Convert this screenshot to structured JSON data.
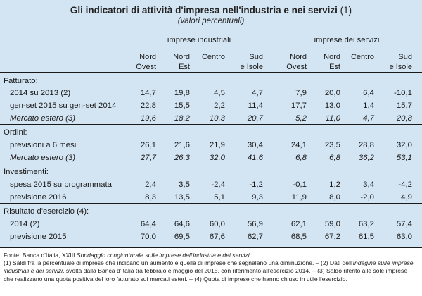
{
  "title": "Gli indicatori di attività d'impresa nell'industria e nei servizi",
  "title_note": "(1)",
  "subtitle": "(valori percentuali)",
  "groups": [
    "imprese industriali",
    "imprese dei servizi"
  ],
  "columns": [
    {
      "l1": "Nord",
      "l2": "Ovest"
    },
    {
      "l1": "Nord",
      "l2": "Est"
    },
    {
      "l1": "Centro",
      "l2": ""
    },
    {
      "l1": "Sud",
      "l2": "e Isole"
    },
    {
      "l1": "Nord",
      "l2": "Ovest"
    },
    {
      "l1": "Nord",
      "l2": "Est"
    },
    {
      "l1": "Centro",
      "l2": ""
    },
    {
      "l1": "Sud",
      "l2": "e Isole"
    }
  ],
  "rows": [
    {
      "kind": "section",
      "label": "Fatturato:"
    },
    {
      "kind": "data",
      "label": "2014 su 2013 (2)",
      "values": [
        "14,7",
        "19,8",
        "4,5",
        "4,7",
        "7,9",
        "20,0",
        "6,4",
        "-10,1"
      ]
    },
    {
      "kind": "data",
      "label": "gen-set 2015 su gen-set 2014",
      "values": [
        "22,8",
        "15,5",
        "2,2",
        "11,4",
        "17,7",
        "13,0",
        "1,4",
        "15,7"
      ]
    },
    {
      "kind": "italic",
      "label": "Mercato estero (3)",
      "values": [
        "19,6",
        "18,2",
        "10,3",
        "20,7",
        "5,2",
        "11,0",
        "4,7",
        "20,8"
      ]
    },
    {
      "kind": "section",
      "label": "Ordini:"
    },
    {
      "kind": "data",
      "label": "previsioni a 6 mesi",
      "values": [
        "26,1",
        "21,6",
        "21,9",
        "30,4",
        "24,1",
        "23,5",
        "28,8",
        "32,0"
      ]
    },
    {
      "kind": "italic",
      "label": "Mercato estero (3)",
      "values": [
        "27,7",
        "26,3",
        "32,0",
        "41,6",
        "6,8",
        "6,8",
        "36,2",
        "53,1"
      ]
    },
    {
      "kind": "section",
      "label": "Investimenti:"
    },
    {
      "kind": "data",
      "label": "spesa 2015 su programmata",
      "values": [
        "2,4",
        "3,5",
        "-2,4",
        "-1,2",
        "-0,1",
        "1,2",
        "3,4",
        "-4,2"
      ]
    },
    {
      "kind": "data",
      "label": "previsione 2016",
      "values": [
        "8,3",
        "13,5",
        "5,1",
        "9,3",
        "11,9",
        "8,0",
        "-2,0",
        "4,9"
      ]
    },
    {
      "kind": "section",
      "label": "Risultato d'esercizio (4):"
    },
    {
      "kind": "data",
      "label": "2014 (2)",
      "values": [
        "64,4",
        "64,6",
        "60,0",
        "56,9",
        "62,1",
        "59,0",
        "63,2",
        "57,4"
      ]
    },
    {
      "kind": "data",
      "label": "previsione 2015",
      "values": [
        "70,0",
        "69,5",
        "67,6",
        "62,7",
        "68,5",
        "67,2",
        "61,5",
        "63,0"
      ]
    }
  ],
  "footnotes": {
    "source_prefix": "Fonte: Banca d'Italia, XXIII ",
    "source_italic": "Sondaggio congiunturale sulle imprese dell'industria e dei servizi",
    "source_suffix": ".",
    "note_a": "(1) Saldi fra la percentuale di imprese che indicano un aumento e quella di imprese che segnalano una diminuzione. – (2) Dati dell'",
    "note_a_italic": "Indagine sulle imprese industriali e dei servizi",
    "note_b": ", svolta dalla Banca d'Italia tra febbraio e maggio del 2015, con riferimento all'esercizio 2014. – (3) Saldo riferito alle sole imprese che realizzano una quota positiva del loro fatturato sui mercati esteri. – (4) Quota di imprese che hanno chiuso in utile l'esercizio."
  }
}
